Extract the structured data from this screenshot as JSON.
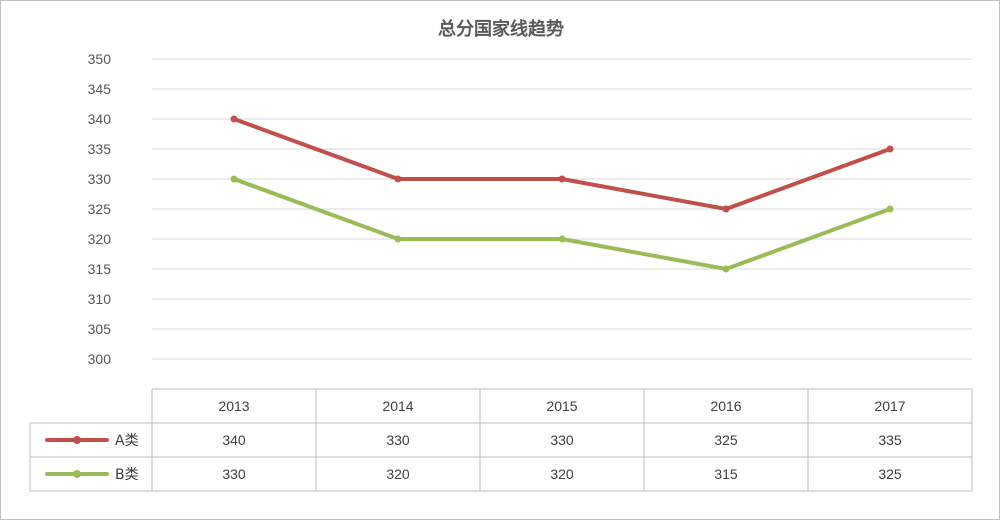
{
  "chart_data": {
    "type": "line",
    "title": "总分国家线趋势",
    "categories": [
      "2013",
      "2014",
      "2015",
      "2016",
      "2017"
    ],
    "series": [
      {
        "name": "A类",
        "values": [
          340,
          330,
          330,
          325,
          335
        ],
        "color": "#c0504d"
      },
      {
        "name": "B类",
        "values": [
          330,
          320,
          320,
          315,
          325
        ],
        "color": "#9bbb59"
      }
    ],
    "xlabel": "",
    "ylabel": "",
    "ylim": [
      300,
      350
    ],
    "yticks": [
      300,
      305,
      310,
      315,
      320,
      325,
      330,
      335,
      340,
      345,
      350
    ],
    "grid": true,
    "legend": "data-table-left",
    "data_table": true,
    "table_cells": [
      [
        "340",
        "330",
        "330",
        "325",
        "335"
      ],
      [
        "330",
        "320",
        "320",
        "315",
        "325"
      ]
    ]
  }
}
